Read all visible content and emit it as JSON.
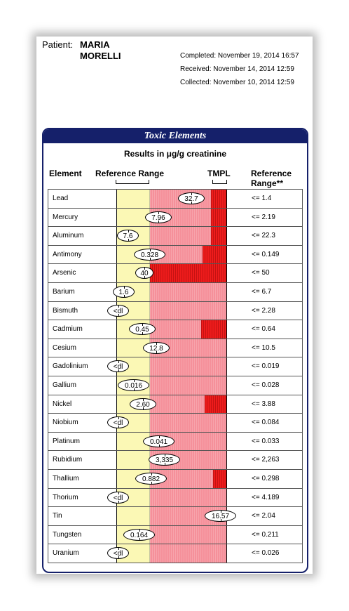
{
  "patient": {
    "label": "Patient:",
    "first_name": "MARIA",
    "last_name": "MORELLI"
  },
  "dates": {
    "completed": "Completed: November 19, 2014 16:57",
    "received": "Received: November 14, 2014 12:59",
    "collected": "Collected: November 10, 2014 12:59"
  },
  "panel": {
    "title": "Toxic Elements",
    "subtitle": "Results in μg/g creatinine",
    "col_element": "Element",
    "col_ref_range": "Reference Range",
    "col_tmpl": "TMPL",
    "col_reference_line1": "Reference",
    "col_reference_line2": "Range**"
  },
  "colors": {
    "header_navy": "#15206a",
    "reference_yellow": "#fbf8b5",
    "elevated_pink": "#f5909a",
    "tmpl_red": "#ee1c1c"
  },
  "rows": [
    {
      "element": "Lead",
      "result": "32.7",
      "reference": "<= 1.4",
      "marker_level": 0.68,
      "tmpl_fill": 0.14
    },
    {
      "element": "Mercury",
      "result": "7.96",
      "reference": "<= 2.19",
      "marker_level": 0.38,
      "tmpl_fill": 0.14
    },
    {
      "element": "Aluminum",
      "result": "7.6",
      "reference": "<= 22.3",
      "marker_level": 0.1,
      "tmpl_fill": 0.14
    },
    {
      "element": "Antimony",
      "result": "0.328",
      "reference": "<= 0.149",
      "marker_level": 0.3,
      "tmpl_fill": 0.22
    },
    {
      "element": "Arsenic",
      "result": "40",
      "reference": "<= 50",
      "marker_level": 0.25,
      "tmpl_fill": 0.7
    },
    {
      "element": "Barium",
      "result": "1.6",
      "reference": "<= 6.7",
      "marker_level": 0.06,
      "tmpl_fill": 0
    },
    {
      "element": "Bismuth",
      "result": "<dl",
      "reference": "<= 2.28",
      "marker_level": 0.0,
      "tmpl_fill": 0
    },
    {
      "element": "Cadmium",
      "result": "0.45",
      "reference": "<= 0.64",
      "marker_level": 0.23,
      "tmpl_fill": 0.23
    },
    {
      "element": "Cesium",
      "result": "12.8",
      "reference": "<= 10.5",
      "marker_level": 0.36,
      "tmpl_fill": 0
    },
    {
      "element": "Gadolinium",
      "result": "<dl",
      "reference": "<= 0.019",
      "marker_level": 0.0,
      "tmpl_fill": 0
    },
    {
      "element": "Gallium",
      "result": "0.016",
      "reference": "<= 0.028",
      "marker_level": 0.15,
      "tmpl_fill": 0
    },
    {
      "element": "Nickel",
      "result": "2.60",
      "reference": "<= 3.88",
      "marker_level": 0.24,
      "tmpl_fill": 0.2
    },
    {
      "element": "Niobium",
      "result": "<dl",
      "reference": "<= 0.084",
      "marker_level": 0.0,
      "tmpl_fill": 0
    },
    {
      "element": "Platinum",
      "result": "0.041",
      "reference": "<= 0.033",
      "marker_level": 0.38,
      "tmpl_fill": 0
    },
    {
      "element": "Rubidium",
      "result": "3,335",
      "reference": "<= 2,263",
      "marker_level": 0.43,
      "tmpl_fill": 0
    },
    {
      "element": "Thallium",
      "result": "0.882",
      "reference": "<= 0.298",
      "marker_level": 0.31,
      "tmpl_fill": 0.12
    },
    {
      "element": "Thorium",
      "result": "<dl",
      "reference": "<= 4.189",
      "marker_level": 0.0,
      "tmpl_fill": 0
    },
    {
      "element": "Tin",
      "result": "16.57",
      "reference": "<= 2.04",
      "marker_level": 0.95,
      "tmpl_fill": 0
    },
    {
      "element": "Tungsten",
      "result": "0.164",
      "reference": "<= 0.211",
      "marker_level": 0.2,
      "tmpl_fill": 0
    },
    {
      "element": "Uranium",
      "result": "<dl",
      "reference": "<= 0.026",
      "marker_level": 0.0,
      "tmpl_fill": 0
    }
  ]
}
